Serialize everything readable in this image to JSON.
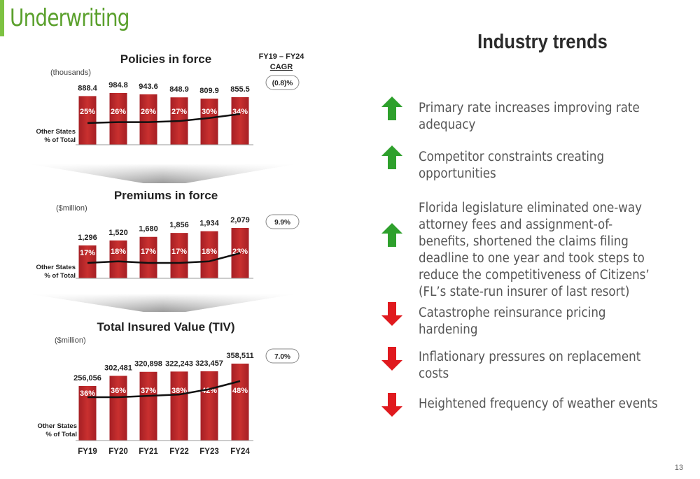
{
  "page": {
    "title": "Underwriting",
    "page_number": "13"
  },
  "cagr_header": {
    "line1": "FY19 – FY24",
    "line2": "CAGR"
  },
  "x_categories": [
    "FY19",
    "FY20",
    "FY21",
    "FY22",
    "FY23",
    "FY24"
  ],
  "colors": {
    "bar": "#c0282d",
    "bar_dark": "#8f1d21",
    "line": "#111111",
    "up_arrow": "#2ea02c",
    "down_arrow": "#e0191e",
    "accent": "#7dc242"
  },
  "chart_data": [
    {
      "type": "bar",
      "title": "Policies in force",
      "unit_label": "(thousands)",
      "categories": [
        "FY19",
        "FY20",
        "FY21",
        "FY22",
        "FY23",
        "FY24"
      ],
      "values": [
        888.4,
        984.8,
        943.6,
        848.9,
        809.9,
        855.5
      ],
      "value_labels": [
        "888.4",
        "984.8",
        "943.6",
        "848.9",
        "809.9",
        "855.5"
      ],
      "line_series": {
        "name": "Other States % of Total",
        "values": [
          25,
          26,
          26,
          27,
          30,
          34
        ],
        "labels": [
          "25%",
          "26%",
          "26%",
          "27%",
          "30%",
          "34%"
        ]
      },
      "line_label": [
        "Other States",
        "% of Total"
      ],
      "cagr": "(0.8)%"
    },
    {
      "type": "bar",
      "title": "Premiums in force",
      "unit_label": "($million)",
      "categories": [
        "FY19",
        "FY20",
        "FY21",
        "FY22",
        "FY23",
        "FY24"
      ],
      "values": [
        1296,
        1520,
        1680,
        1856,
        1934,
        2079
      ],
      "value_labels": [
        "1,296",
        "1,520",
        "1,680",
        "1,856",
        "1,934",
        "2,079"
      ],
      "line_series": {
        "name": "Other States % of Total",
        "values": [
          17,
          18,
          17,
          17,
          18,
          23
        ],
        "labels": [
          "17%",
          "18%",
          "17%",
          "17%",
          "18%",
          "23%"
        ]
      },
      "line_label": [
        "Other States",
        "% of Total"
      ],
      "cagr": "9.9%"
    },
    {
      "type": "bar",
      "title": "Total Insured Value (TIV)",
      "unit_label": "($million)",
      "categories": [
        "FY19",
        "FY20",
        "FY21",
        "FY22",
        "FY23",
        "FY24"
      ],
      "values": [
        256056,
        302481,
        320898,
        322243,
        323457,
        358511
      ],
      "value_labels": [
        "256,056",
        "302,481",
        "320,898",
        "322,243",
        "323,457",
        "358,511"
      ],
      "line_series": {
        "name": "Other States % of Total",
        "values": [
          36,
          36,
          37,
          38,
          42,
          48
        ],
        "labels": [
          "36%",
          "36%",
          "37%",
          "38%",
          "42%",
          "48%"
        ]
      },
      "line_label": [
        "Other States",
        "% of Total"
      ],
      "cagr": "7.0%"
    }
  ],
  "trends": {
    "title": "Industry trends",
    "items": [
      {
        "direction": "up",
        "icon": "up-arrow-icon",
        "text": "Primary rate increases improving rate adequacy"
      },
      {
        "direction": "up",
        "icon": "up-arrow-icon",
        "text": "Competitor constraints creating opportunities"
      },
      {
        "direction": "up",
        "icon": "up-arrow-icon",
        "text": "Florida legislature eliminated one-way attorney fees and assignment-of-benefits, shortened the claims filing deadline to one year and took steps to reduce the competitiveness of Citizens’ (FL’s state-run insurer of last resort)"
      },
      {
        "direction": "down",
        "icon": "down-arrow-icon",
        "text": "Catastrophe reinsurance pricing hardening"
      },
      {
        "direction": "down",
        "icon": "down-arrow-icon",
        "text": "Inflationary pressures on replacement costs"
      },
      {
        "direction": "down",
        "icon": "down-arrow-icon",
        "text": "Heightened frequency of weather events"
      }
    ]
  }
}
